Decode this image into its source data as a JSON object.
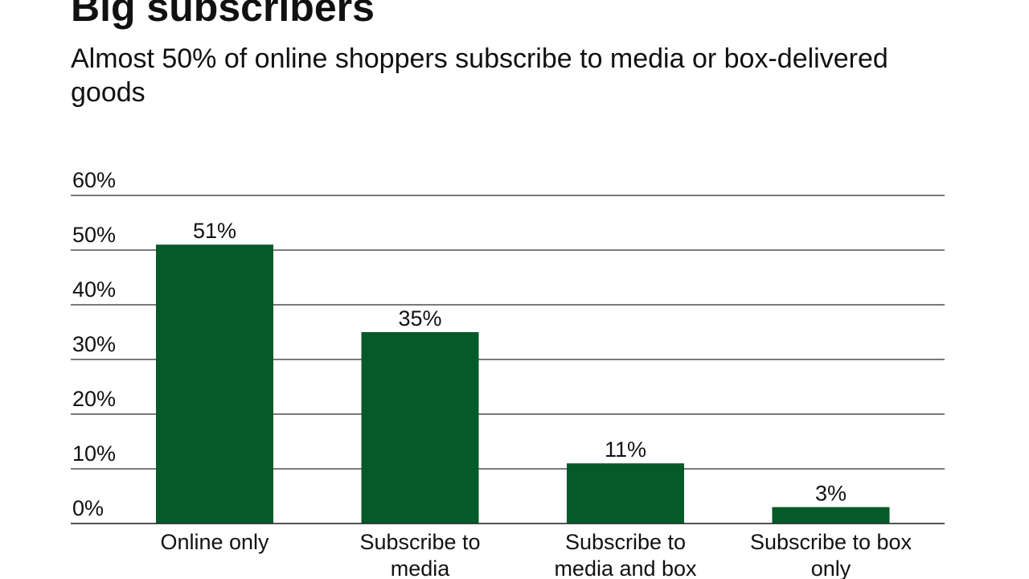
{
  "chart_data": {
    "type": "bar",
    "title": "Big subscribers",
    "subtitle": "Almost 50% of online shoppers subscribe to media or box-delivered goods",
    "categories": [
      "Online only",
      "Subscribe to media",
      "Subscribe to media and box",
      "Subscribe to box only"
    ],
    "category_lines": [
      [
        "Online only"
      ],
      [
        "Subscribe to",
        "media"
      ],
      [
        "Subscribe to",
        "media and box"
      ],
      [
        "Subscribe to box",
        "only"
      ]
    ],
    "values": [
      51,
      35,
      11,
      3
    ],
    "data_labels": [
      "51%",
      "35%",
      "11%",
      "3%"
    ],
    "yticks": [
      0,
      10,
      20,
      30,
      40,
      50,
      60
    ],
    "ytick_labels": [
      "0%",
      "10%",
      "20%",
      "30%",
      "40%",
      "50%",
      "60%"
    ],
    "ylim": [
      0,
      60
    ],
    "xlabel": "",
    "ylabel": "",
    "grid": true,
    "legend": "none",
    "bar_color": "#045a28",
    "grid_color": "#2b2b2b"
  }
}
